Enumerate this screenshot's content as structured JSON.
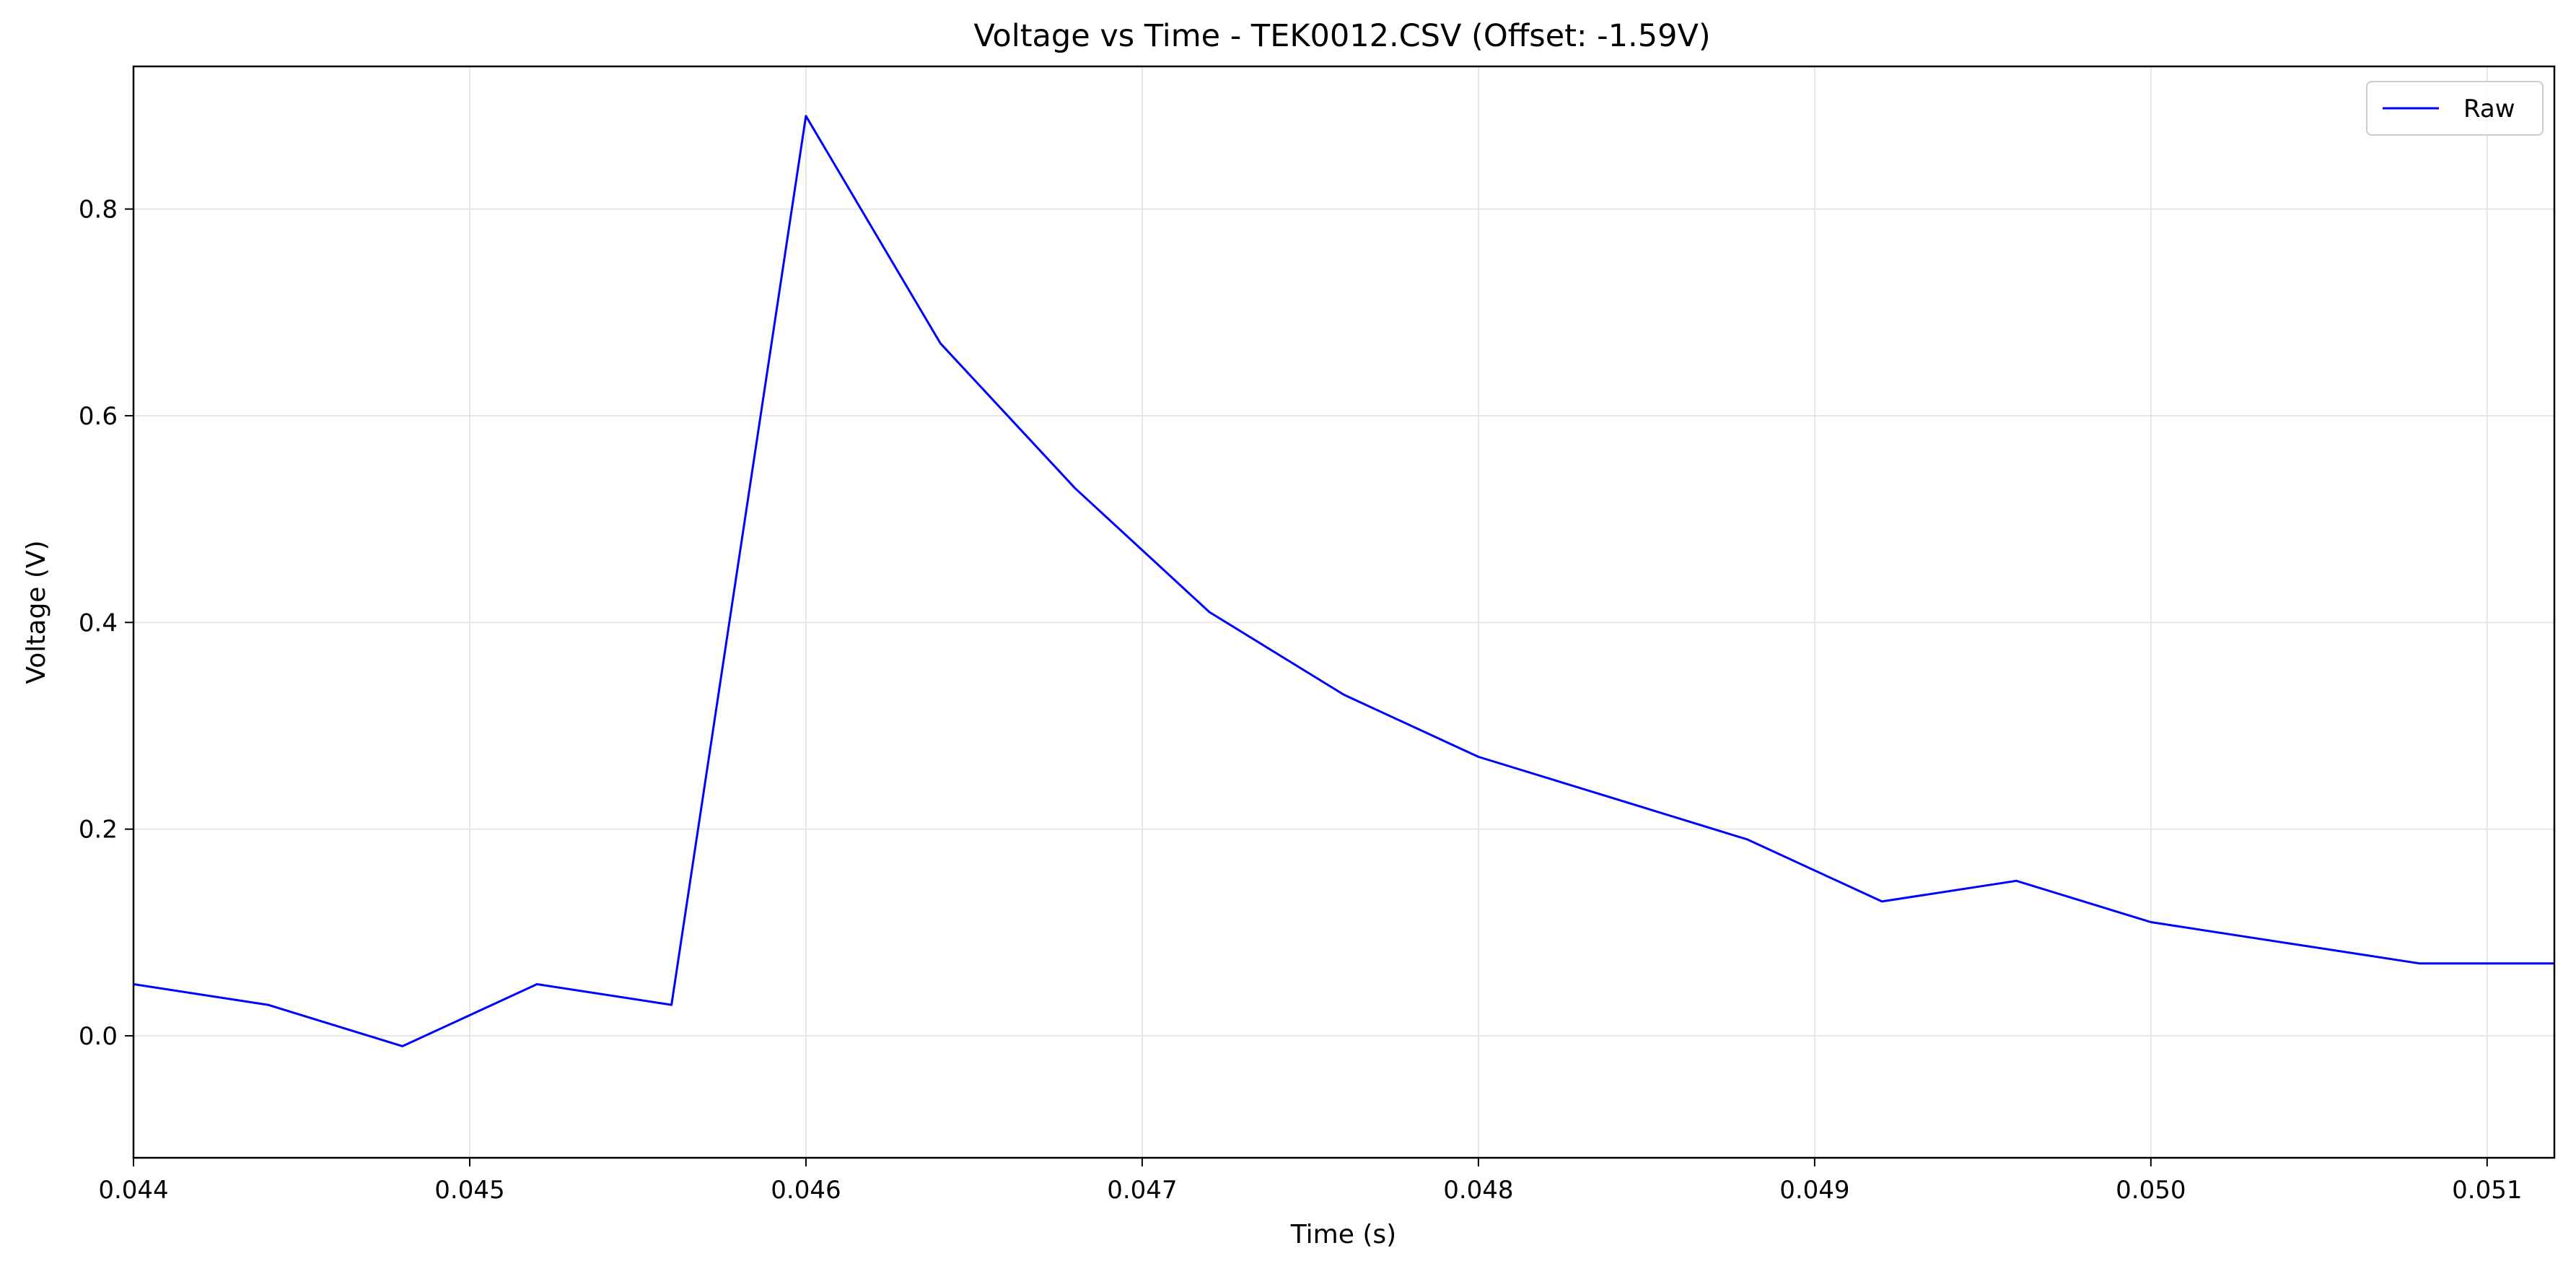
{
  "chart_data": {
    "type": "line",
    "title": "Voltage vs Time - TEK0012.CSV (Offset: -1.59V)",
    "xlabel": "Time (s)",
    "ylabel": "Voltage (V)",
    "xlim": [
      0.044,
      0.0512
    ],
    "ylim": [
      -0.118,
      0.938
    ],
    "xticks": [
      0.044,
      0.045,
      0.046,
      0.047,
      0.048,
      0.049,
      0.05,
      0.051
    ],
    "xtick_labels": [
      "0.044",
      "0.045",
      "0.046",
      "0.047",
      "0.048",
      "0.049",
      "0.050",
      "0.051"
    ],
    "yticks": [
      0.0,
      0.2,
      0.4,
      0.6,
      0.8
    ],
    "ytick_labels": [
      "0.0",
      "0.2",
      "0.4",
      "0.6",
      "0.8"
    ],
    "grid": true,
    "legend": {
      "position": "top-right"
    },
    "series": [
      {
        "name": "Raw",
        "color": "#0000ff",
        "x": [
          0.044,
          0.0444,
          0.0448,
          0.0452,
          0.0456,
          0.046,
          0.0464,
          0.0468,
          0.0472,
          0.0476,
          0.048,
          0.0484,
          0.0488,
          0.0492,
          0.0496,
          0.05,
          0.0504,
          0.0508,
          0.0512
        ],
        "y": [
          0.05,
          0.03,
          -0.01,
          0.05,
          0.03,
          0.89,
          0.67,
          0.53,
          0.41,
          0.33,
          0.27,
          0.23,
          0.19,
          0.13,
          0.15,
          0.11,
          0.09,
          0.07,
          0.07
        ]
      }
    ]
  }
}
